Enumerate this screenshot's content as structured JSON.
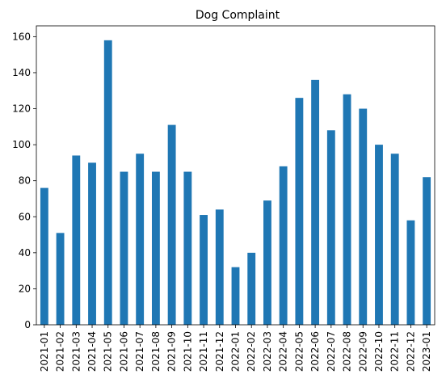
{
  "chart_data": {
    "type": "bar",
    "title": "Dog Complaint",
    "xlabel": "",
    "ylabel": "",
    "categories": [
      "2021-01",
      "2021-02",
      "2021-03",
      "2021-04",
      "2021-05",
      "2021-06",
      "2021-07",
      "2021-08",
      "2021-09",
      "2021-10",
      "2021-11",
      "2021-12",
      "2022-01",
      "2022-02",
      "2022-03",
      "2022-04",
      "2022-05",
      "2022-06",
      "2022-07",
      "2022-08",
      "2022-09",
      "2022-10",
      "2022-11",
      "2022-12",
      "2023-01"
    ],
    "values": [
      76,
      51,
      94,
      90,
      158,
      85,
      95,
      85,
      111,
      85,
      61,
      64,
      32,
      40,
      69,
      88,
      126,
      136,
      108,
      128,
      120,
      100,
      95,
      58,
      82
    ],
    "ylim": [
      0,
      166
    ],
    "yticks": [
      0,
      20,
      40,
      60,
      80,
      100,
      120,
      140,
      160
    ],
    "grid": false,
    "legend": "none",
    "bar_color": "#1f77b4"
  }
}
